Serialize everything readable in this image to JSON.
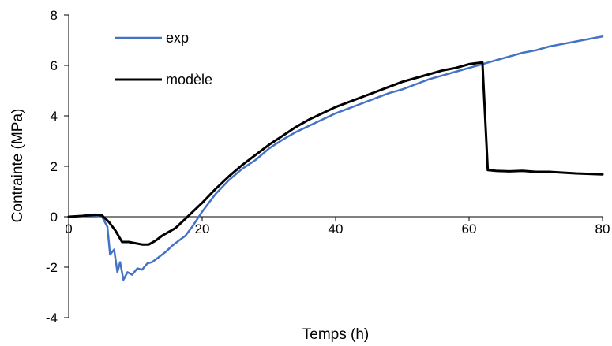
{
  "chart_data": {
    "type": "line",
    "title": "",
    "xlabel": "Temps (h)",
    "ylabel": "Contrainte (MPa)",
    "xlim": [
      0,
      80
    ],
    "ylim": [
      -4,
      8
    ],
    "x_ticks": [
      0,
      20,
      40,
      60,
      80
    ],
    "y_ticks": [
      -4,
      -2,
      0,
      2,
      4,
      6,
      8
    ],
    "grid": false,
    "legend_position": "top-left",
    "series": [
      {
        "name": "exp",
        "color": "#4472C4",
        "points": [
          [
            0,
            0
          ],
          [
            2,
            0.03
          ],
          [
            4,
            0.05
          ],
          [
            5,
            0.0
          ],
          [
            5.8,
            -0.4
          ],
          [
            6.2,
            -1.5
          ],
          [
            6.8,
            -1.3
          ],
          [
            7.3,
            -2.2
          ],
          [
            7.7,
            -1.8
          ],
          [
            8.2,
            -2.5
          ],
          [
            8.8,
            -2.2
          ],
          [
            9.5,
            -2.3
          ],
          [
            10.3,
            -2.05
          ],
          [
            11,
            -2.1
          ],
          [
            11.8,
            -1.85
          ],
          [
            12.5,
            -1.8
          ],
          [
            13.5,
            -1.6
          ],
          [
            14.5,
            -1.4
          ],
          [
            15.5,
            -1.15
          ],
          [
            16.5,
            -0.95
          ],
          [
            17.5,
            -0.75
          ],
          [
            18.5,
            -0.4
          ],
          [
            20,
            0.2
          ],
          [
            22,
            0.9
          ],
          [
            24,
            1.45
          ],
          [
            26,
            1.9
          ],
          [
            28,
            2.25
          ],
          [
            30,
            2.7
          ],
          [
            32,
            3.05
          ],
          [
            34,
            3.35
          ],
          [
            36,
            3.6
          ],
          [
            38,
            3.85
          ],
          [
            40,
            4.1
          ],
          [
            42,
            4.3
          ],
          [
            44,
            4.5
          ],
          [
            46,
            4.7
          ],
          [
            48,
            4.9
          ],
          [
            50,
            5.05
          ],
          [
            52,
            5.25
          ],
          [
            54,
            5.45
          ],
          [
            56,
            5.6
          ],
          [
            58,
            5.75
          ],
          [
            60,
            5.9
          ],
          [
            62,
            6.05
          ],
          [
            64,
            6.2
          ],
          [
            66,
            6.35
          ],
          [
            68,
            6.5
          ],
          [
            70,
            6.6
          ],
          [
            72,
            6.75
          ],
          [
            74,
            6.85
          ],
          [
            76,
            6.95
          ],
          [
            78,
            7.05
          ],
          [
            80,
            7.15
          ]
        ]
      },
      {
        "name": "modèle",
        "color": "#000000",
        "points": [
          [
            0,
            0
          ],
          [
            2,
            0.03
          ],
          [
            4,
            0.08
          ],
          [
            5,
            0.05
          ],
          [
            6,
            -0.2
          ],
          [
            7,
            -0.55
          ],
          [
            8,
            -1.0
          ],
          [
            9,
            -1.0
          ],
          [
            10,
            -1.05
          ],
          [
            11,
            -1.1
          ],
          [
            12,
            -1.1
          ],
          [
            13,
            -0.95
          ],
          [
            14,
            -0.75
          ],
          [
            15,
            -0.6
          ],
          [
            16,
            -0.45
          ],
          [
            17,
            -0.2
          ],
          [
            18,
            0.05
          ],
          [
            19,
            0.3
          ],
          [
            20,
            0.55
          ],
          [
            22,
            1.1
          ],
          [
            24,
            1.6
          ],
          [
            26,
            2.05
          ],
          [
            28,
            2.45
          ],
          [
            30,
            2.85
          ],
          [
            32,
            3.2
          ],
          [
            34,
            3.55
          ],
          [
            36,
            3.85
          ],
          [
            38,
            4.1
          ],
          [
            40,
            4.35
          ],
          [
            42,
            4.55
          ],
          [
            44,
            4.75
          ],
          [
            46,
            4.95
          ],
          [
            48,
            5.15
          ],
          [
            50,
            5.35
          ],
          [
            52,
            5.5
          ],
          [
            54,
            5.65
          ],
          [
            56,
            5.8
          ],
          [
            58,
            5.9
          ],
          [
            60,
            6.05
          ],
          [
            62,
            6.12
          ],
          [
            62.8,
            1.85
          ],
          [
            64,
            1.82
          ],
          [
            66,
            1.8
          ],
          [
            68,
            1.82
          ],
          [
            70,
            1.78
          ],
          [
            72,
            1.78
          ],
          [
            74,
            1.75
          ],
          [
            76,
            1.72
          ],
          [
            78,
            1.7
          ],
          [
            80,
            1.68
          ]
        ]
      }
    ]
  }
}
